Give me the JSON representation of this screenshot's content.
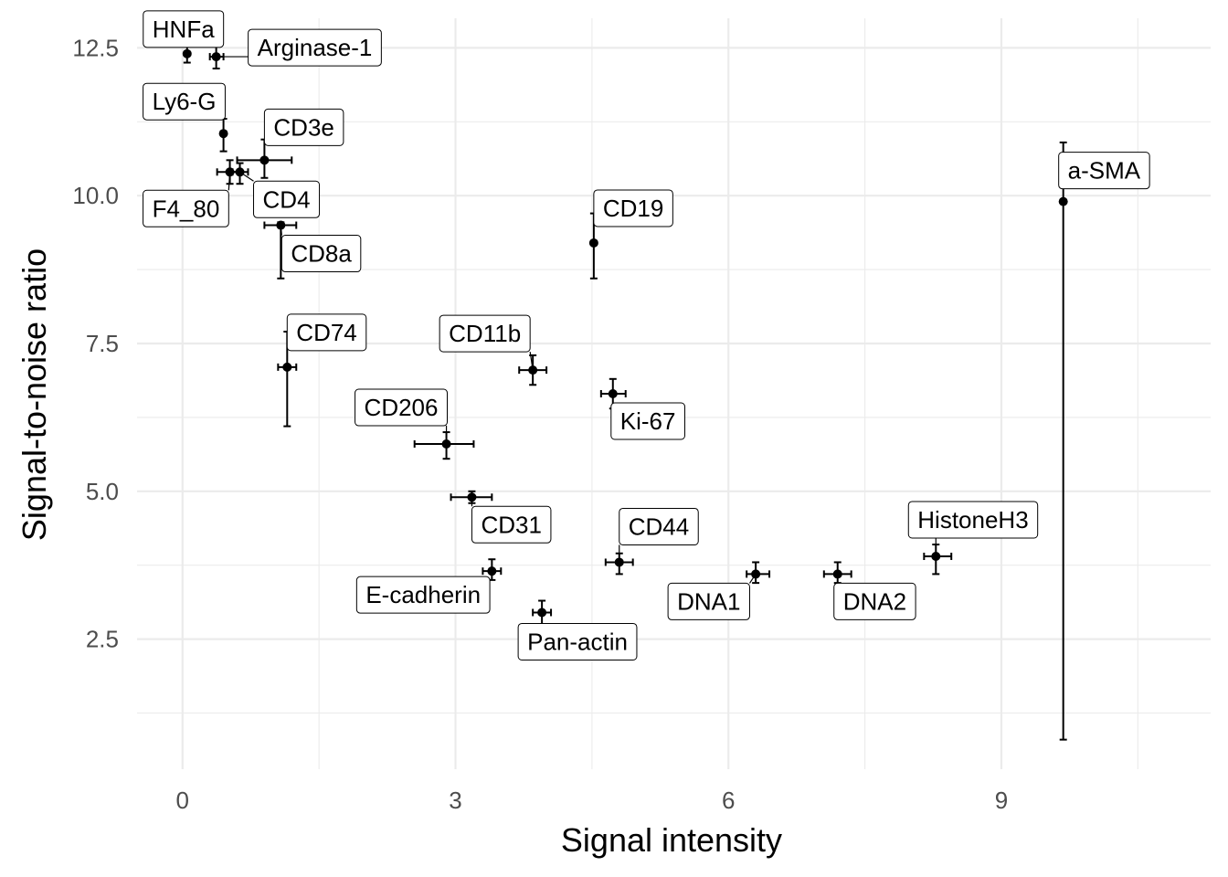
{
  "chart_data": {
    "type": "scatter",
    "xlabel": "Signal intensity",
    "ylabel": "Signal-to-noise ratio",
    "xlim": [
      -0.5,
      11.3
    ],
    "ylim": [
      0.3,
      13.0
    ],
    "x_ticks": [
      0,
      3,
      6,
      9
    ],
    "x_tick_labels": [
      "0",
      "3",
      "6",
      "9"
    ],
    "y_ticks": [
      2.5,
      5.0,
      7.5,
      10.0,
      12.5
    ],
    "y_tick_labels": [
      "2.5",
      "5.0",
      "7.5",
      "10.0",
      "12.5"
    ],
    "grid": true,
    "points": [
      {
        "label": "HNFa",
        "x": 0.05,
        "y": 12.4,
        "x_err": [
          0.05,
          0.05
        ],
        "y_err": [
          12.25,
          12.55
        ]
      },
      {
        "label": "Arginase-1",
        "x": 0.37,
        "y": 12.35,
        "x_err": [
          0.3,
          0.45
        ],
        "y_err": [
          12.15,
          12.6
        ]
      },
      {
        "label": "Ly6-G",
        "x": 0.45,
        "y": 11.05,
        "x_err": [
          0.45,
          0.45
        ],
        "y_err": [
          10.75,
          11.3
        ]
      },
      {
        "label": "CD3e",
        "x": 0.9,
        "y": 10.6,
        "x_err": [
          0.6,
          1.2
        ],
        "y_err": [
          10.3,
          10.95
        ]
      },
      {
        "label": "F4_80",
        "x": 0.52,
        "y": 10.4,
        "x_err": [
          0.38,
          0.65
        ],
        "y_err": [
          10.2,
          10.6
        ]
      },
      {
        "label": "CD4",
        "x": 0.63,
        "y": 10.4,
        "x_err": [
          0.55,
          0.72
        ],
        "y_err": [
          10.2,
          10.55
        ]
      },
      {
        "label": "CD8a",
        "x": 1.08,
        "y": 9.5,
        "x_err": [
          0.9,
          1.25
        ],
        "y_err": [
          8.6,
          9.55
        ]
      },
      {
        "label": "CD19",
        "x": 4.52,
        "y": 9.2,
        "x_err": [
          4.52,
          4.52
        ],
        "y_err": [
          8.6,
          9.7
        ]
      },
      {
        "label": "a-SMA",
        "x": 9.68,
        "y": 9.9,
        "x_err": [
          9.68,
          9.68
        ],
        "y_err": [
          0.8,
          10.9
        ]
      },
      {
        "label": "CD74",
        "x": 1.15,
        "y": 7.1,
        "x_err": [
          1.05,
          1.25
        ],
        "y_err": [
          6.1,
          7.7
        ]
      },
      {
        "label": "CD11b",
        "x": 3.85,
        "y": 7.05,
        "x_err": [
          3.7,
          4.0
        ],
        "y_err": [
          6.8,
          7.3
        ]
      },
      {
        "label": "Ki-67",
        "x": 4.73,
        "y": 6.65,
        "x_err": [
          4.6,
          4.87
        ],
        "y_err": [
          6.4,
          6.9
        ]
      },
      {
        "label": "CD206",
        "x": 2.9,
        "y": 5.8,
        "x_err": [
          2.55,
          3.2
        ],
        "y_err": [
          5.55,
          6.0
        ]
      },
      {
        "label": "CD31",
        "x": 3.18,
        "y": 4.9,
        "x_err": [
          2.95,
          3.4
        ],
        "y_err": [
          4.8,
          5.0
        ]
      },
      {
        "label": "CD44",
        "x": 4.8,
        "y": 3.8,
        "x_err": [
          4.65,
          4.95
        ],
        "y_err": [
          3.6,
          3.95
        ]
      },
      {
        "label": "E-cadherin",
        "x": 3.4,
        "y": 3.65,
        "x_err": [
          3.3,
          3.5
        ],
        "y_err": [
          3.5,
          3.85
        ]
      },
      {
        "label": "DNA1",
        "x": 6.3,
        "y": 3.6,
        "x_err": [
          6.2,
          6.45
        ],
        "y_err": [
          3.45,
          3.8
        ]
      },
      {
        "label": "DNA2",
        "x": 7.2,
        "y": 3.6,
        "x_err": [
          7.05,
          7.35
        ],
        "y_err": [
          3.45,
          3.8
        ]
      },
      {
        "label": "HistoneH3",
        "x": 8.28,
        "y": 3.9,
        "x_err": [
          8.15,
          8.45
        ],
        "y_err": [
          3.6,
          4.1
        ]
      },
      {
        "label": "Pan-actin",
        "x": 3.95,
        "y": 2.95,
        "x_err": [
          3.85,
          4.05
        ],
        "y_err": [
          2.75,
          3.15
        ]
      }
    ]
  }
}
